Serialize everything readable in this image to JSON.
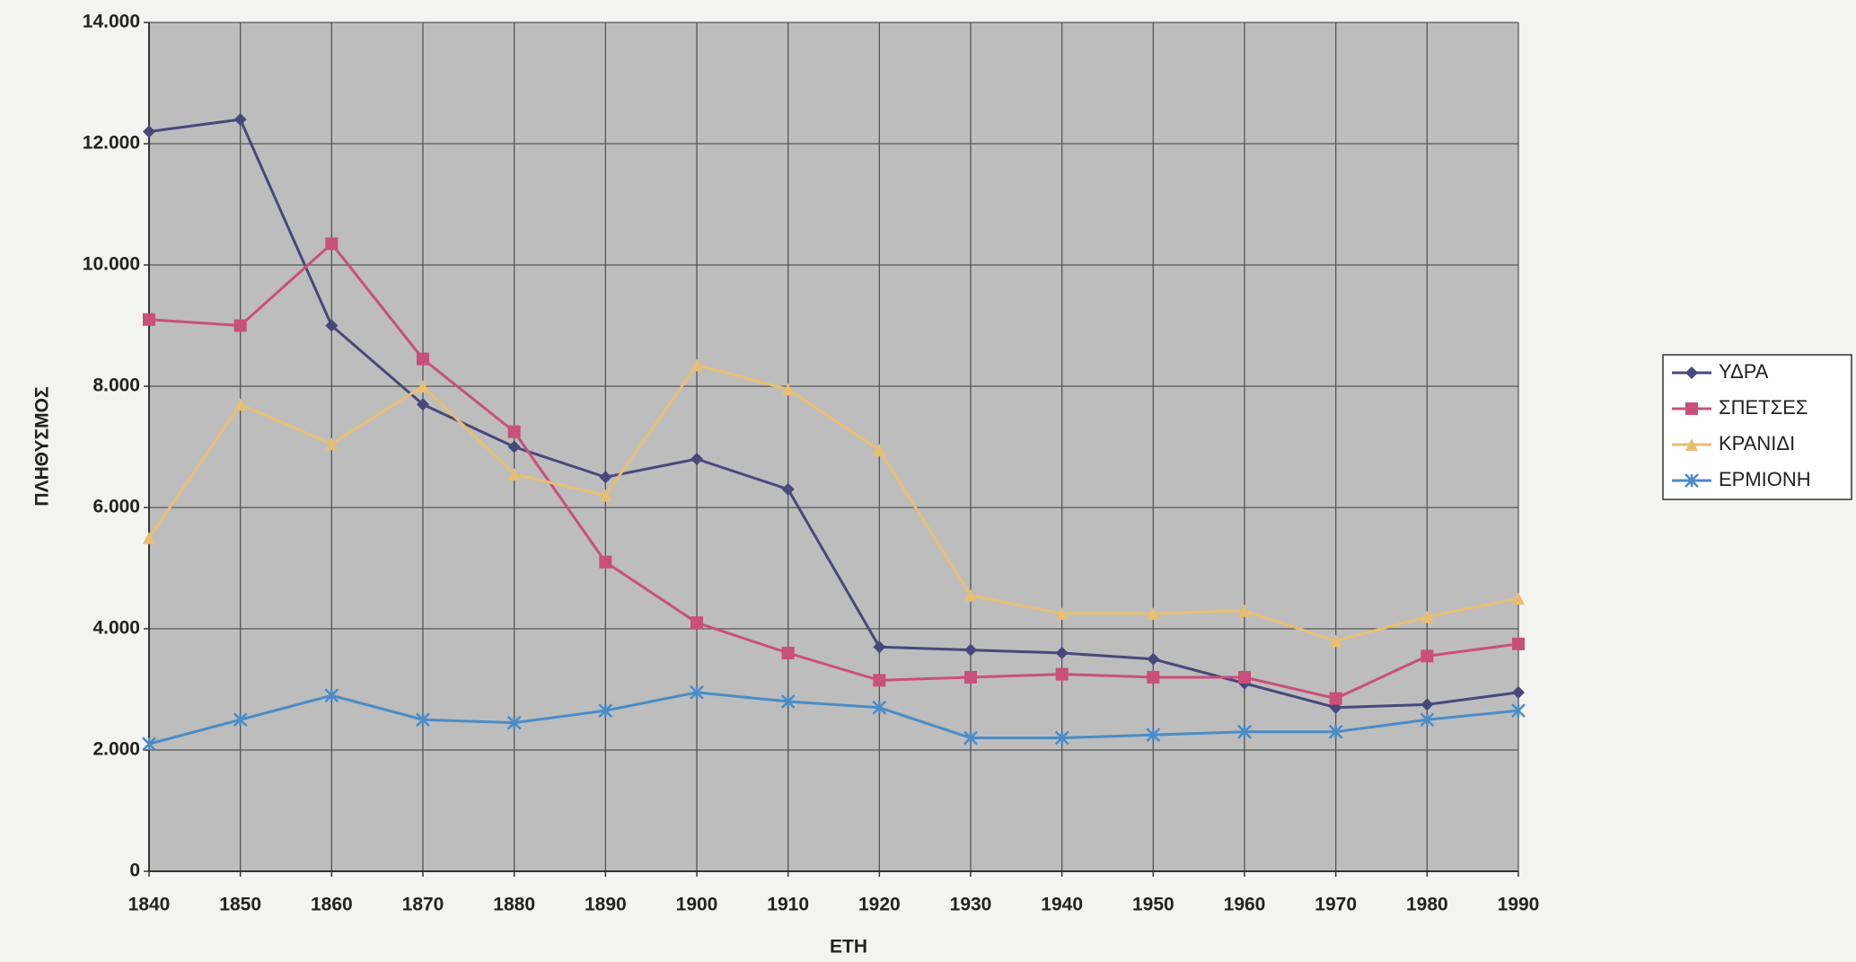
{
  "chart_data": {
    "type": "line",
    "x_label": "ΕΤΗ",
    "y_label": "ΠΛΗΘΥΣΜΟΣ",
    "x": [
      1840,
      1850,
      1860,
      1870,
      1880,
      1890,
      1900,
      1910,
      1920,
      1930,
      1940,
      1950,
      1960,
      1970,
      1980,
      1990
    ],
    "xlim": [
      1840,
      1990
    ],
    "xticks": [
      1840,
      1850,
      1860,
      1870,
      1880,
      1890,
      1900,
      1910,
      1920,
      1930,
      1940,
      1950,
      1960,
      1970,
      1980,
      1990
    ],
    "ylim": [
      0,
      14000
    ],
    "yticks": [
      0,
      {
        "value": 2000,
        "label": "2.000"
      },
      {
        "value": 4000,
        "label": "4.000"
      },
      {
        "value": 6000,
        "label": "6.000"
      },
      {
        "value": 8000,
        "label": "8.000"
      },
      {
        "value": 10000,
        "label": "10.000"
      },
      {
        "value": 12000,
        "label": "12.000"
      },
      {
        "value": 14000,
        "label": "14.000"
      }
    ],
    "grid": true,
    "legend": "right",
    "series": [
      {
        "name": "ΥΔΡΑ",
        "color": "#48487a",
        "marker": "diamond",
        "values": [
          12200,
          12400,
          9000,
          7700,
          7000,
          6500,
          6800,
          6300,
          3700,
          3650,
          3600,
          3500,
          3100,
          2700,
          2750,
          2950
        ]
      },
      {
        "name": "ΣΠΕΤΣΕΣ",
        "color": "#c8507a",
        "marker": "square",
        "values": [
          9100,
          9000,
          10350,
          8450,
          7250,
          5100,
          4100,
          3600,
          3150,
          3200,
          3250,
          3200,
          3200,
          2850,
          3550,
          3750
        ]
      },
      {
        "name": "ΚΡΑΝΙΔΙ",
        "color": "#e6bf72",
        "marker": "triangle",
        "values": [
          5500,
          7700,
          7050,
          8000,
          6550,
          6200,
          8350,
          7950,
          6950,
          4550,
          4250,
          4250,
          4300,
          3800,
          4200,
          4500
        ]
      },
      {
        "name": "ΕΡΜΙΟΝΗ",
        "color": "#4a8cc6",
        "marker": "star",
        "values": [
          2100,
          2500,
          2900,
          2500,
          2450,
          2650,
          2950,
          2800,
          2700,
          2200,
          2200,
          2250,
          2300,
          2300,
          2500,
          2650
        ]
      }
    ]
  }
}
